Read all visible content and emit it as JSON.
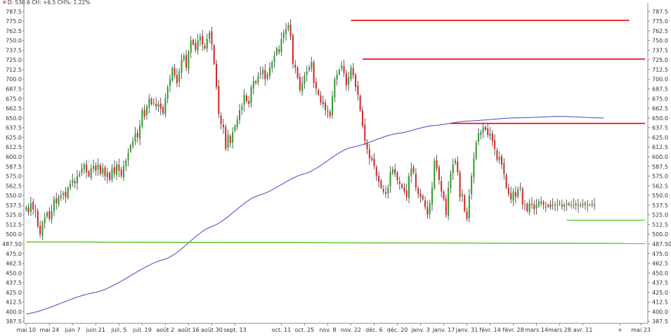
{
  "header": {
    "info_text": "D: 538.6 CH: +6.5 CH%: 1.22%",
    "close_icon": "close-x-icon"
  },
  "colors": {
    "up_candle": "#2ca02c",
    "down_candle": "#d62728",
    "moving_average": "#4444cc",
    "resistance": "#e8000a",
    "support": "#66cc33",
    "axis_text": "#333333",
    "axis_line": "#888888"
  },
  "chart_data": {
    "type": "candlestick",
    "title": "",
    "xlabel": "",
    "ylabel": "",
    "ylim": [
      385,
      795
    ],
    "y_ticks": [
      787.5,
      775.0,
      762.5,
      750.0,
      737.5,
      725.0,
      712.5,
      700.0,
      687.5,
      675.0,
      662.5,
      650.0,
      637.5,
      625.0,
      612.5,
      600.0,
      587.5,
      575.0,
      562.5,
      550.0,
      537.5,
      525.0,
      512.5,
      500.0,
      487.5,
      475.0,
      462.5,
      450.0,
      437.5,
      425.0,
      412.5,
      400.0,
      387.5
    ],
    "y_tick_labels": [
      "787.5",
      "775.0",
      "762.5",
      "750.0",
      "737.5",
      "725.0",
      "712.5",
      "700.0",
      "687.5",
      "675.0",
      "662.5",
      "650.0",
      "637.5",
      "625.0",
      "612.5",
      "600.0",
      "587.5",
      "575.0",
      "562.5",
      "550.0",
      "537.5",
      "525.0",
      "512.5",
      "500.0",
      "487.50",
      "475.0",
      "462.5",
      "450.0",
      "437.5",
      "425.0",
      "412.5",
      "400.0",
      "387.5"
    ],
    "x_ticks": [
      {
        "label": "mai 10",
        "index": 0
      },
      {
        "label": "mai 24",
        "index": 10
      },
      {
        "label": "juin 7",
        "index": 20
      },
      {
        "label": "juin 21",
        "index": 30
      },
      {
        "label": "juil. 5",
        "index": 40
      },
      {
        "label": "juil. 19",
        "index": 50
      },
      {
        "label": "août 2",
        "index": 60
      },
      {
        "label": "août 16",
        "index": 70
      },
      {
        "label": "août 30",
        "index": 80
      },
      {
        "label": "sept. 13",
        "index": 90
      },
      {
        "label": "oct. 11",
        "index": 110
      },
      {
        "label": "oct. 25",
        "index": 120
      },
      {
        "label": "nov. 8",
        "index": 130
      },
      {
        "label": "nov. 22",
        "index": 140
      },
      {
        "label": "déc. 6",
        "index": 150
      },
      {
        "label": "déc. 20",
        "index": 160
      },
      {
        "label": "janv. 3",
        "index": 170
      },
      {
        "label": "janv. 17",
        "index": 180
      },
      {
        "label": "janv. 31",
        "index": 190
      },
      {
        "label": "févr. 14",
        "index": 200
      },
      {
        "label": "févr. 28",
        "index": 210
      },
      {
        "label": "mars 14",
        "index": 220
      },
      {
        "label": "mars 28",
        "index": 230
      },
      {
        "label": "avr. 11",
        "index": 240
      },
      {
        "label": "+",
        "index": 256
      },
      {
        "label": "mai 23",
        "index": 265
      }
    ],
    "x_range": [
      -1,
      268
    ],
    "closes": [
      535,
      528,
      540,
      532,
      530,
      510,
      500,
      515,
      522,
      528,
      520,
      530,
      545,
      540,
      548,
      550,
      553,
      548,
      560,
      565,
      570,
      566,
      575,
      578,
      585,
      590,
      580,
      575,
      585,
      588,
      582,
      590,
      578,
      585,
      575,
      580,
      570,
      585,
      578,
      590,
      582,
      575,
      588,
      595,
      605,
      615,
      620,
      630,
      625,
      640,
      660,
      652,
      665,
      675,
      668,
      670,
      665,
      668,
      662,
      656,
      675,
      690,
      700,
      715,
      705,
      695,
      710,
      725,
      730,
      715,
      735,
      750,
      745,
      738,
      750,
      755,
      745,
      740,
      752,
      760,
      745,
      720,
      690,
      655,
      642,
      638,
      610,
      628,
      618,
      632,
      640,
      648,
      660,
      665,
      680,
      672,
      668,
      690,
      698,
      695,
      704,
      708,
      712,
      700,
      706,
      715,
      722,
      730,
      740,
      735,
      752,
      760,
      765,
      770,
      755,
      720,
      715,
      702,
      686,
      695,
      705,
      710,
      715,
      722,
      695,
      688,
      680,
      670,
      668,
      660,
      658,
      652,
      678,
      700,
      706,
      712,
      718,
      708,
      692,
      702,
      715,
      705,
      690,
      680,
      660,
      640,
      620,
      610,
      598,
      596,
      588,
      575,
      568,
      560,
      555,
      552,
      560,
      580,
      584,
      578,
      570,
      565,
      560,
      555,
      548,
      575,
      585,
      580,
      560,
      552,
      548,
      545,
      535,
      525,
      540,
      560,
      595,
      585,
      570,
      555,
      545,
      525,
      560,
      578,
      590,
      595,
      580,
      548,
      552,
      530,
      520,
      550,
      575,
      598,
      618,
      630,
      632,
      638,
      635,
      628,
      630,
      620,
      610,
      596,
      600,
      590,
      578,
      560,
      552,
      545,
      555,
      548,
      558,
      560,
      538,
      538,
      530,
      540,
      538,
      532,
      538,
      542,
      540,
      538,
      536,
      538,
      535,
      538,
      538,
      538,
      540,
      536,
      538,
      538,
      538,
      538,
      538,
      538,
      538,
      538,
      538,
      538,
      538,
      538,
      538,
      538
    ],
    "resistance_lines": [
      {
        "y": 776,
        "x_start": 140,
        "x_end": 260
      },
      {
        "y": 726,
        "x_start": 145,
        "x_end": 268
      },
      {
        "y": 643,
        "x_start": 183,
        "x_end": 268
      }
    ],
    "support_lines": [
      {
        "y1": 490,
        "y2": 488,
        "x_start": 0,
        "x_end": 268
      },
      {
        "y1": 518,
        "y2": 518,
        "x_start": 233,
        "x_end": 268
      }
    ],
    "moving_average": {
      "start_index": 0,
      "end_index": 249,
      "points": [
        [
          0,
          397
        ],
        [
          30,
          425
        ],
        [
          60,
          468
        ],
        [
          80,
          510
        ],
        [
          100,
          550
        ],
        [
          120,
          578
        ],
        [
          140,
          612
        ],
        [
          160,
          630
        ],
        [
          175,
          640
        ],
        [
          190,
          646
        ],
        [
          210,
          650
        ],
        [
          230,
          652
        ],
        [
          249,
          650
        ]
      ]
    },
    "last_value": 538.6,
    "change": 6.5,
    "change_pct": 1.22
  }
}
